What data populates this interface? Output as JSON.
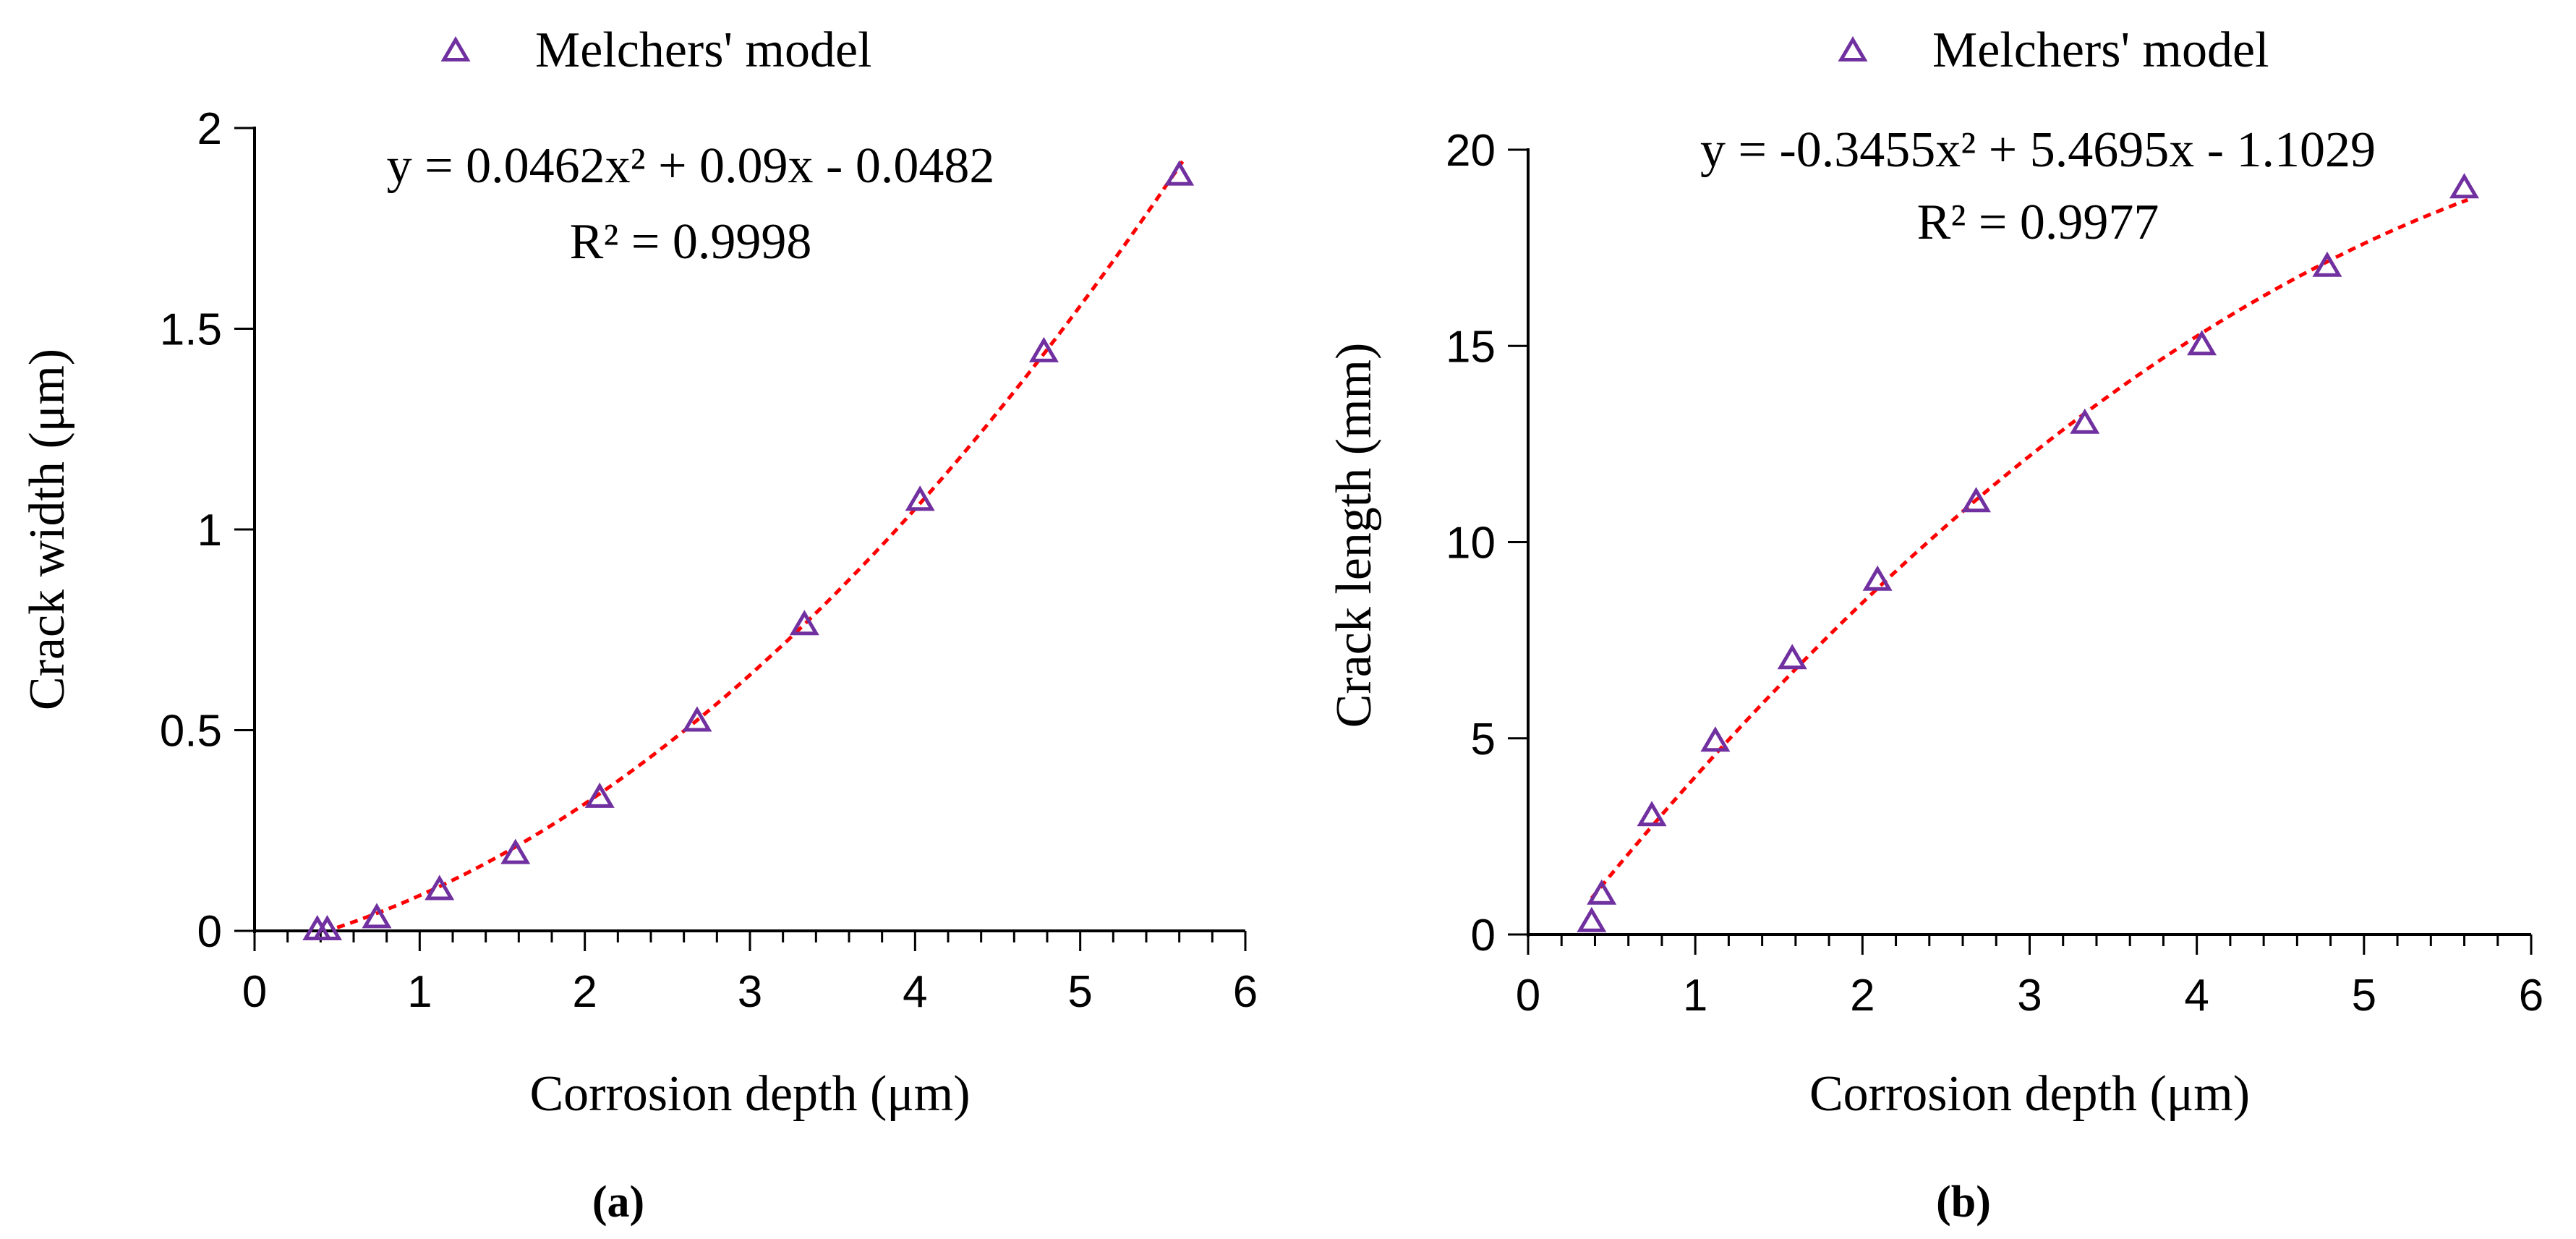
{
  "figure": {
    "panel_a_label": "(a)",
    "panel_b_label": "(b)"
  },
  "colors": {
    "marker": "#7030A0",
    "fit_line": "#FF0000",
    "axis": "#000000"
  },
  "chart_data": [
    {
      "type": "scatter",
      "legend": "Melchers' model",
      "legend_position": "top-center",
      "xlabel": "Corrosion depth (μm)",
      "ylabel": "Crack width (μm)",
      "xlim": [
        0,
        6
      ],
      "ylim": [
        0,
        2
      ],
      "xticks": [
        "0",
        "1",
        "2",
        "3",
        "4",
        "5",
        "6"
      ],
      "yticks": [
        "0",
        "0.5",
        "1",
        "1.5",
        "2"
      ],
      "x": [
        0.38,
        0.44,
        0.74,
        1.12,
        1.58,
        2.09,
        2.68,
        3.33,
        4.03,
        4.78,
        5.6
      ],
      "y": [
        0.0,
        0.0,
        0.03,
        0.1,
        0.19,
        0.33,
        0.52,
        0.76,
        1.07,
        1.44,
        1.88
      ],
      "trendline": {
        "type": "polynomial",
        "coefficients": [
          0.0462,
          0.09,
          -0.0482
        ],
        "x_range": [
          0.5,
          5.62
        ],
        "equation_label": "y = 0.0462x² + 0.09x - 0.0482",
        "r2_label": "R² = 0.9998"
      }
    },
    {
      "type": "scatter",
      "legend": "Melchers' model",
      "legend_position": "top-center",
      "xlabel": "Corrosion depth (μm)",
      "ylabel": "Crack length (mm)",
      "xlim": [
        0,
        6
      ],
      "ylim": [
        0,
        20
      ],
      "xticks": [
        "0",
        "1",
        "2",
        "3",
        "4",
        "5",
        "6"
      ],
      "yticks": [
        "0",
        "5",
        "10",
        "15",
        "20"
      ],
      "x": [
        0.38,
        0.44,
        0.74,
        1.12,
        1.58,
        2.09,
        2.68,
        3.33,
        4.03,
        4.78,
        5.6
      ],
      "y": [
        0.3,
        1.0,
        3.0,
        4.9,
        7.0,
        9.0,
        11.0,
        13.0,
        15.0,
        17.0,
        19.0
      ],
      "trendline": {
        "type": "polynomial",
        "coefficients": [
          -0.3455,
          5.4695,
          -1.1029
        ],
        "x_range": [
          0.38,
          5.62
        ],
        "equation_label": "y = -0.3455x² + 5.4695x - 1.1029",
        "r2_label": "R² = 0.9977"
      }
    }
  ]
}
